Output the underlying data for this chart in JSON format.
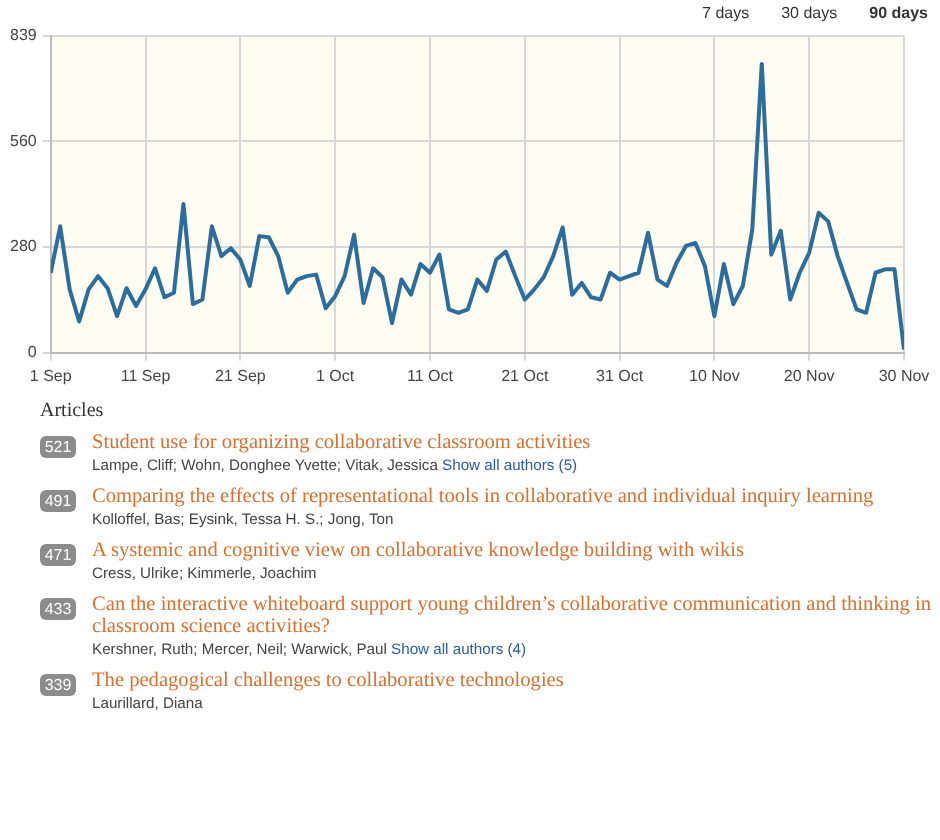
{
  "chart_data": {
    "type": "line",
    "x": [
      "--09-01",
      "--09-02",
      "--09-03",
      "--09-04",
      "--09-05",
      "--09-06",
      "--09-07",
      "--09-08",
      "--09-09",
      "--09-10",
      "--09-11",
      "--09-12",
      "--09-13",
      "--09-14",
      "--09-15",
      "--09-16",
      "--09-17",
      "--09-18",
      "--09-19",
      "--09-20",
      "--09-21",
      "--09-22",
      "--09-23",
      "--09-24",
      "--09-25",
      "--09-26",
      "--09-27",
      "--09-28",
      "--09-29",
      "--09-30",
      "--10-01",
      "--10-02",
      "--10-03",
      "--10-04",
      "--10-05",
      "--10-06",
      "--10-07",
      "--10-08",
      "--10-09",
      "--10-10",
      "--10-11",
      "--10-12",
      "--10-13",
      "--10-14",
      "--10-15",
      "--10-16",
      "--10-17",
      "--10-18",
      "--10-19",
      "--10-20",
      "--10-21",
      "--10-22",
      "--10-23",
      "--10-24",
      "--10-25",
      "--10-26",
      "--10-27",
      "--10-28",
      "--10-29",
      "--10-30",
      "--10-31",
      "--11-01",
      "--11-02",
      "--11-03",
      "--11-04",
      "--11-05",
      "--11-06",
      "--11-07",
      "--11-08",
      "--11-09",
      "--11-10",
      "--11-11",
      "--11-12",
      "--11-13",
      "--11-14",
      "--11-15",
      "--11-16",
      "--11-17",
      "--11-18",
      "--11-19",
      "--11-20",
      "--11-21",
      "--11-22",
      "--11-23",
      "--11-24",
      "--11-25",
      "--11-26",
      "--11-27",
      "--11-28",
      "--11-29",
      "--11-30"
    ],
    "series": [
      {
        "color": "#2b6e9e",
        "values": [
          212,
          335,
          168,
          83,
          168,
          203,
          171,
          97,
          171,
          124,
          168,
          224,
          147,
          159,
          394,
          129,
          141,
          335,
          256,
          277,
          247,
          177,
          309,
          306,
          256,
          159,
          194,
          203,
          207,
          118,
          150,
          203,
          313,
          132,
          224,
          200,
          79,
          194,
          154,
          235,
          212,
          260,
          115,
          106,
          115,
          194,
          164,
          247,
          268,
          203,
          141,
          168,
          200,
          256,
          332,
          154,
          185,
          147,
          141,
          212,
          194,
          203,
          212,
          318,
          194,
          177,
          238,
          283,
          291,
          230,
          97,
          235,
          129,
          177,
          327,
          765,
          260,
          323,
          141,
          212,
          265,
          371,
          348,
          256,
          185,
          115,
          106,
          212,
          221,
          221,
          9
        ]
      }
    ],
    "xlim": [
      "--09-01",
      "--11-30"
    ],
    "xticks": [
      {
        "value": "--09-01",
        "label": "1 Sep"
      },
      {
        "value": "--09-11",
        "label": "11 Sep"
      },
      {
        "value": "--09-21",
        "label": "21 Sep"
      },
      {
        "value": "--10-01",
        "label": "1 Oct"
      },
      {
        "value": "--10-11",
        "label": "11 Oct"
      },
      {
        "value": "--10-21",
        "label": "21 Oct"
      },
      {
        "value": "--10-31",
        "label": "31 Oct"
      },
      {
        "value": "--11-10",
        "label": "10 Nov"
      },
      {
        "value": "--11-20",
        "label": "20 Nov"
      },
      {
        "value": "--11-30",
        "label": "30 Nov"
      }
    ],
    "ylim": [
      0,
      839
    ],
    "yticks": [
      0,
      280,
      560,
      839
    ],
    "grid": true,
    "legend": false,
    "marker": "none",
    "line_style": "solid",
    "annotations": [
      "7 days",
      "30 days",
      "90 days",
      "Articles",
      "521",
      "Student use for organizing collaborative classroom activities",
      "Lampe, Cliff; Wohn, Donghee Yvette; Vitak, Jessica",
      "Show all authors (5)",
      "491",
      "Comparing the effects of representational tools in collaborative and individual inquiry learning",
      "Kolloffel, Bas; Eysink, Tessa H. S.; Jong, Ton",
      "471",
      "A systemic and cognitive view on collaborative knowledge building with wikis",
      "Cress, Ulrike; Kimmerle, Joachim",
      "433",
      "Can the interactive whiteboard support young children’s collaborative communication and thinking in classroom science activities?",
      "Kershner, Ruth; Mercer, Neil; Warwick, Paul",
      "Show all authors (4)",
      "339",
      "The pedagogical challenges to collaborative technologies",
      "Laurillard, Diana"
    ]
  }
}
